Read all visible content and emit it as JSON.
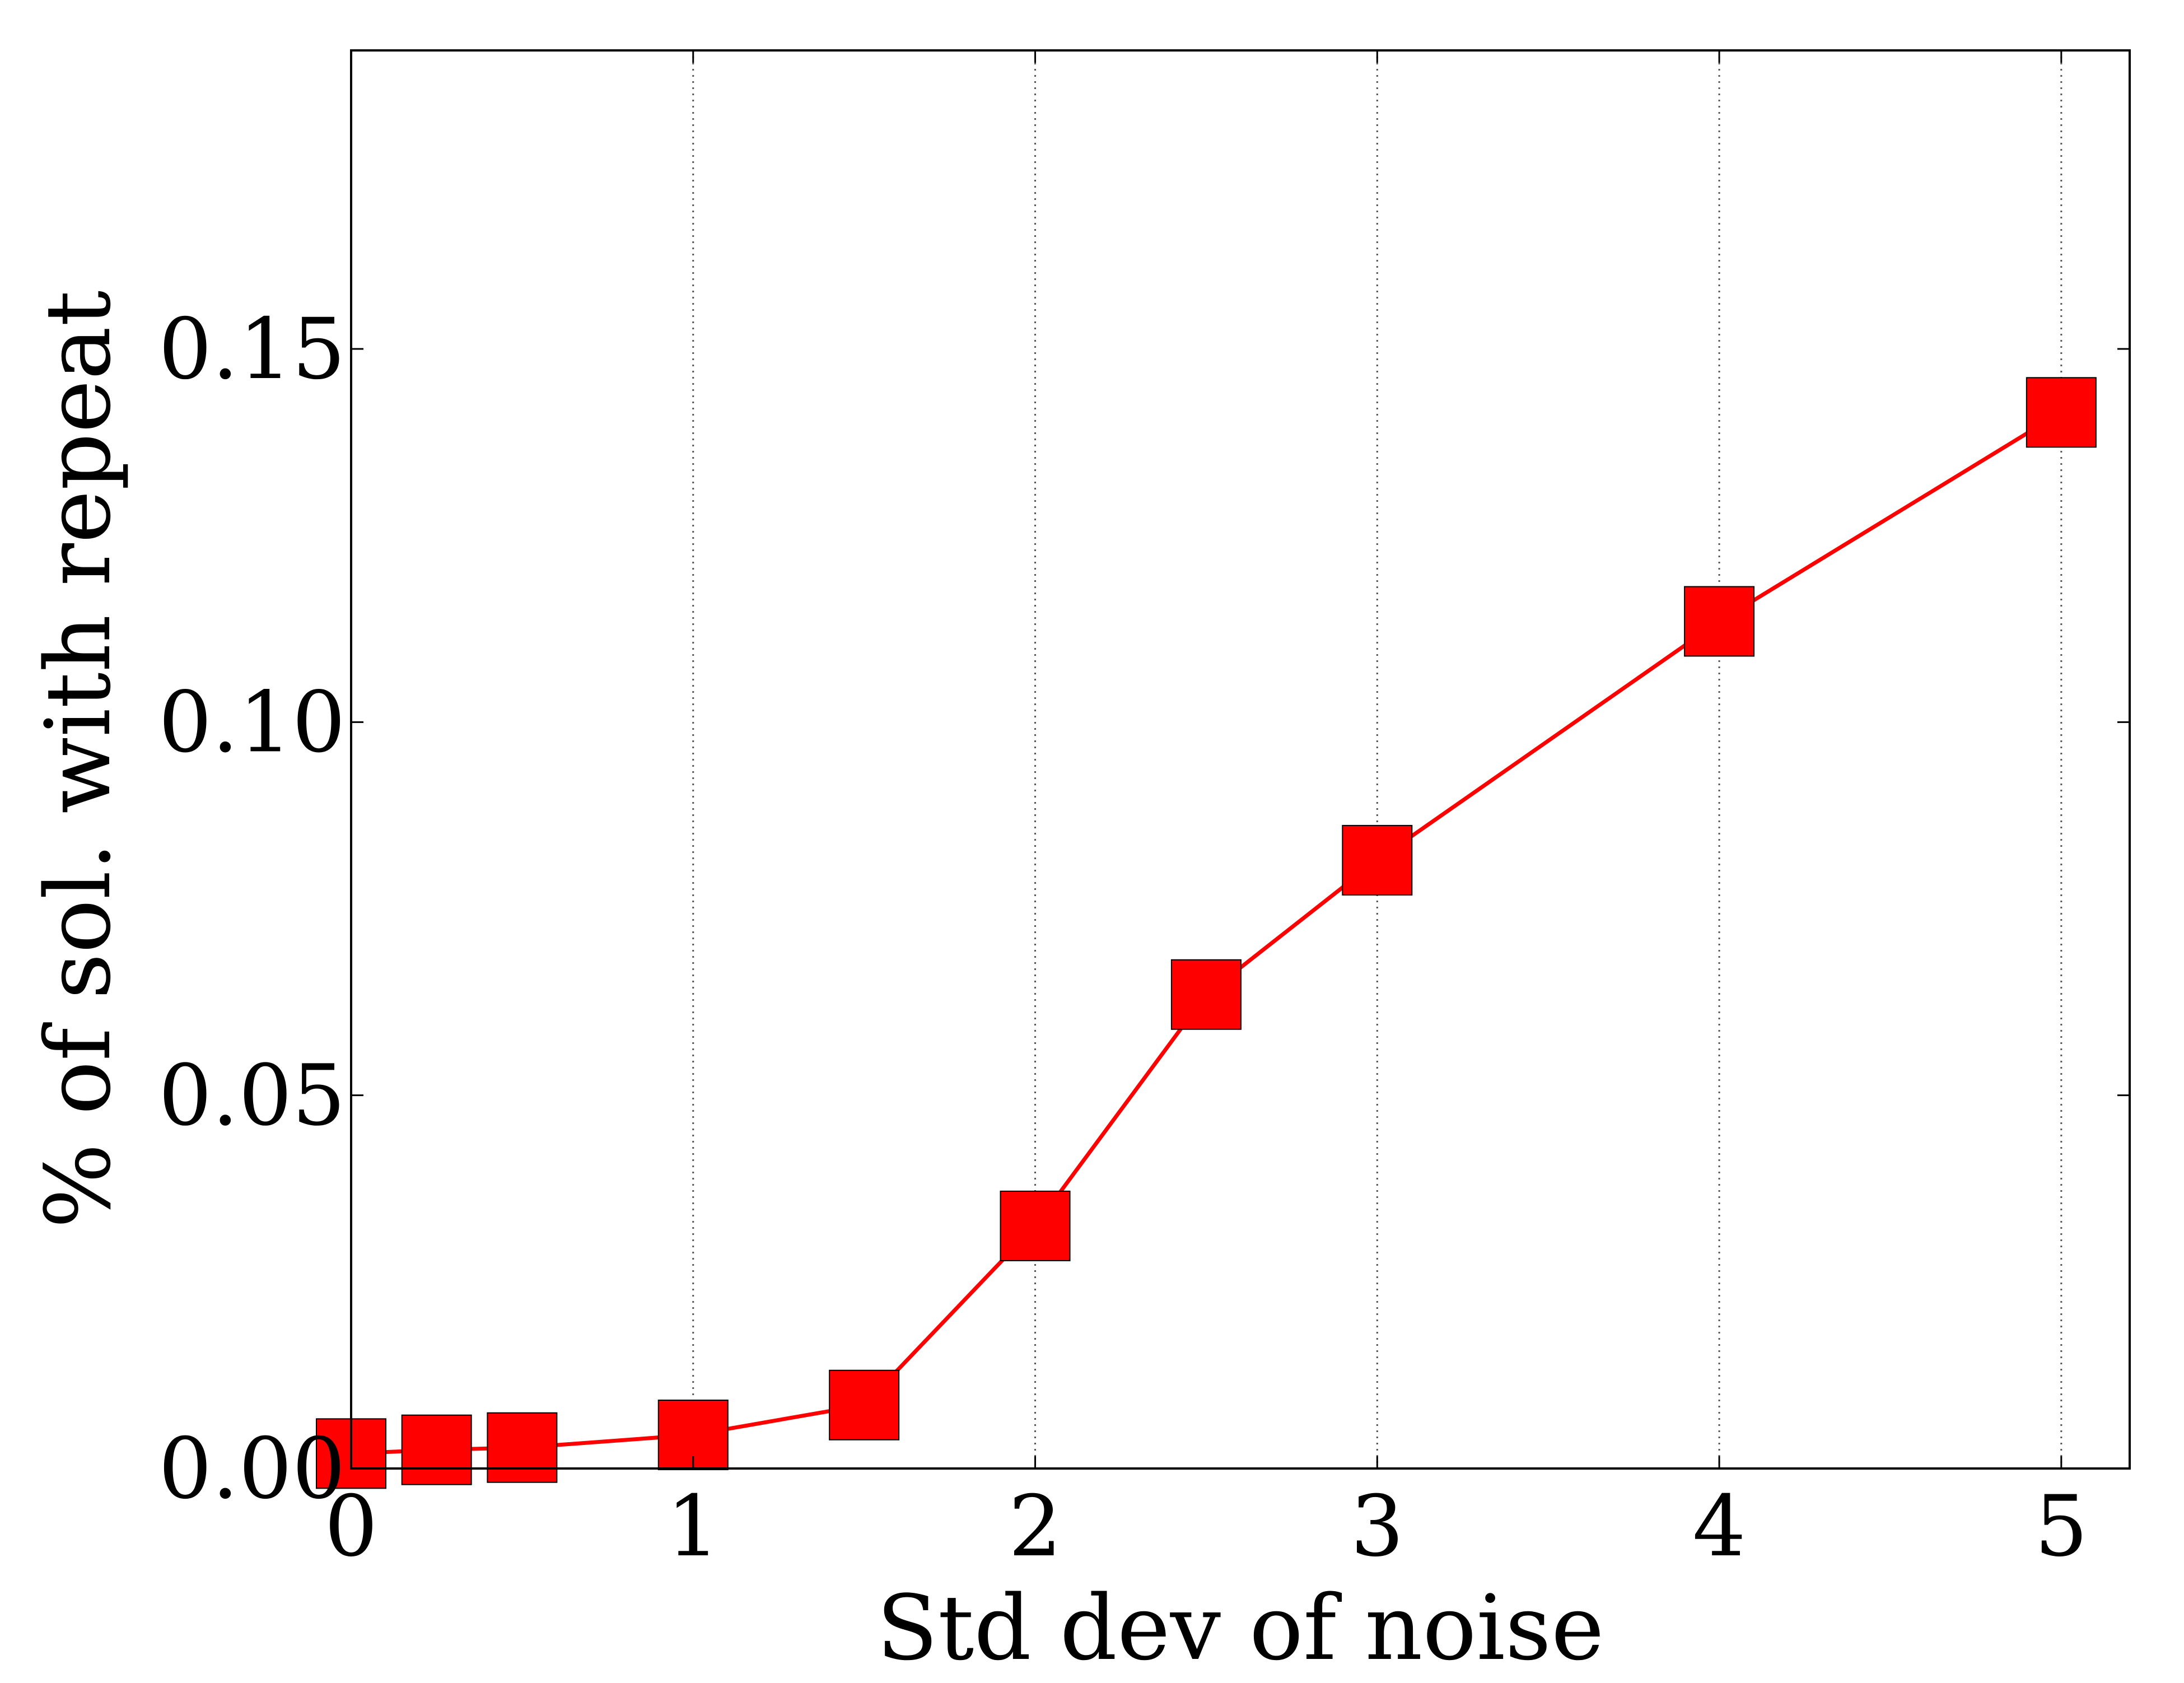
{
  "chart_data": {
    "type": "line",
    "title": "",
    "xlabel": "Std dev of noise",
    "ylabel": "% of sol. with repeat",
    "xlim": [
      0,
      5.2
    ],
    "ylim": [
      0,
      0.19
    ],
    "xticks": [
      0,
      1,
      2,
      3,
      4,
      5
    ],
    "xtick_labels": [
      "0",
      "1",
      "2",
      "3",
      "4",
      "5"
    ],
    "yticks": [
      0.0,
      0.05,
      0.1,
      0.15
    ],
    "ytick_labels": [
      "0.00",
      "0.05",
      "0.10",
      "0.15"
    ],
    "grid": "vertical dotted",
    "legend": "none",
    "series": [
      {
        "color": "#ff0000",
        "marker": "square",
        "x": [
          0,
          0.25,
          0.5,
          1,
          1.5,
          2,
          2.5,
          3,
          4,
          5
        ],
        "y": [
          0.002,
          0.0025,
          0.0028,
          0.0045,
          0.0085,
          0.0325,
          0.0635,
          0.0815,
          0.1135,
          0.1415
        ]
      }
    ]
  }
}
